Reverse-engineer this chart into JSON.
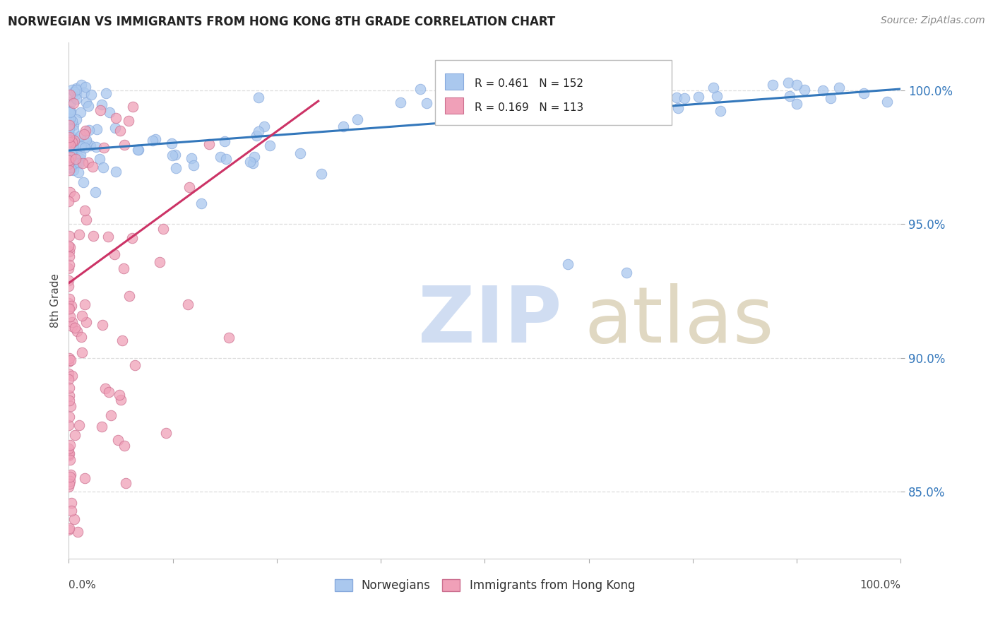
{
  "title": "NORWEGIAN VS IMMIGRANTS FROM HONG KONG 8TH GRADE CORRELATION CHART",
  "source": "Source: ZipAtlas.com",
  "ylabel": "8th Grade",
  "ytick_labels": [
    "100.0%",
    "95.0%",
    "90.0%",
    "85.0%"
  ],
  "ytick_values": [
    1.0,
    0.95,
    0.9,
    0.85
  ],
  "xlim": [
    0.0,
    1.0
  ],
  "ylim": [
    0.825,
    1.018
  ],
  "norwegians_color": "#aac8ee",
  "norwegians_edge_color": "#88aadd",
  "hk_color": "#f0a0b8",
  "hk_edge_color": "#cc7090",
  "trend_norwegian_color": "#3377bb",
  "trend_hk_color": "#cc3366",
  "legend_norwegian": "Norwegians",
  "legend_hk": "Immigrants from Hong Kong",
  "R_norwegian": 0.461,
  "N_norwegian": 152,
  "R_hk": 0.169,
  "N_hk": 113,
  "watermark_zip_color": "#c8d8f0",
  "watermark_atlas_color": "#d4c8a8",
  "grid_color": "#dddddd",
  "background_color": "#ffffff",
  "title_color": "#222222",
  "source_color": "#888888",
  "ylabel_color": "#444444",
  "ytick_color": "#3377bb",
  "xtick_color": "#444444",
  "spine_color": "#cccccc",
  "nor_trend_x0": 0.0,
  "nor_trend_x1": 1.0,
  "nor_trend_y0": 0.9775,
  "nor_trend_y1": 1.0005,
  "hk_trend_x0": 0.0,
  "hk_trend_x1": 0.3,
  "hk_trend_y0": 0.928,
  "hk_trend_y1": 0.996
}
